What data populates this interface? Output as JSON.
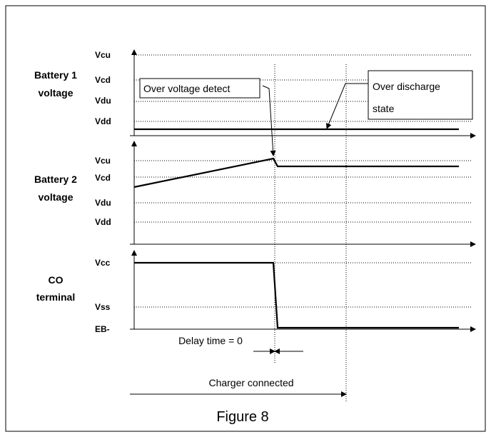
{
  "panels": [
    {
      "label": [
        "Battery 1",
        "voltage"
      ],
      "levels": [
        "Vcu",
        "Vcd",
        "Vdu",
        "Vdd"
      ]
    },
    {
      "label": [
        "Battery 2",
        "voltage"
      ],
      "levels": [
        "Vcu",
        "Vcd",
        "Vdu",
        "Vdd"
      ]
    },
    {
      "label": [
        "CO",
        "terminal"
      ],
      "levels": [
        "Vcc",
        "Vss",
        "EB-"
      ]
    }
  ],
  "callouts": [
    {
      "lines": [
        "Over voltage detect"
      ]
    },
    {
      "lines": [
        "Over discharge",
        "state"
      ]
    }
  ],
  "delay_label": "Delay time = 0",
  "charger_label": "Charger connected",
  "caption": "Figure 8"
}
